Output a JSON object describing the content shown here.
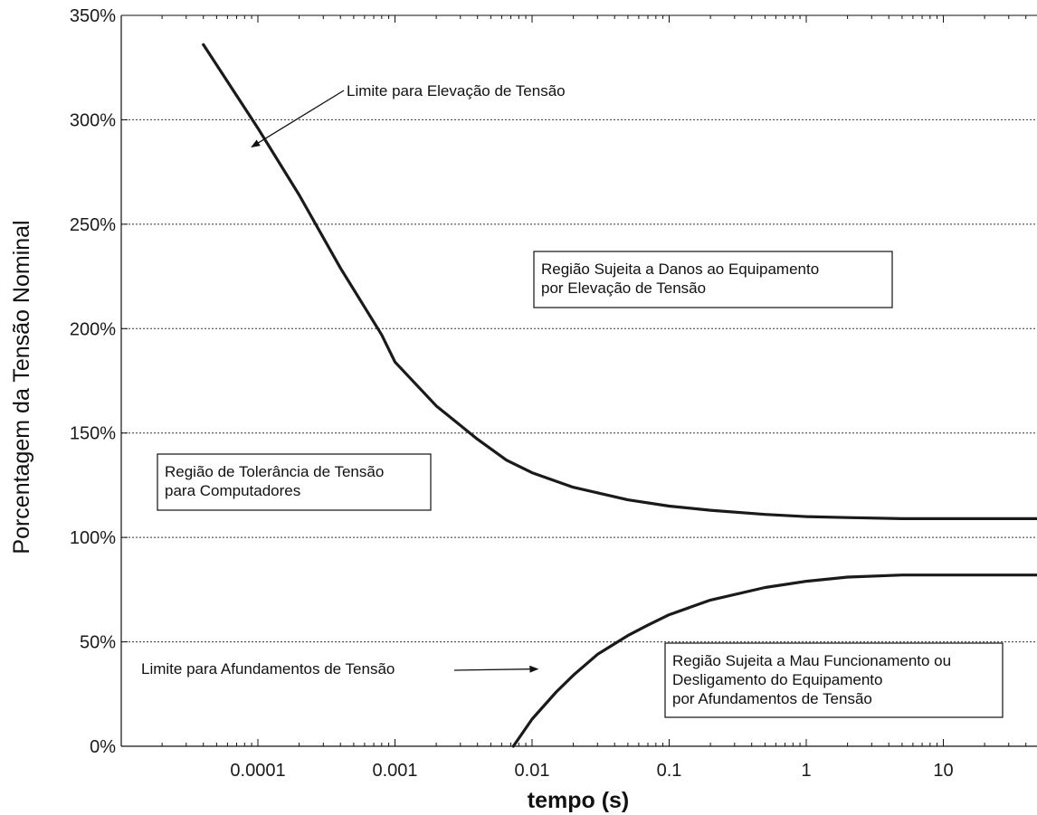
{
  "chart_data": {
    "type": "line",
    "xlabel": "tempo (s)",
    "ylabel": "Porcentagem da Tensão Nominal",
    "x_scale": "log",
    "xlim": [
      1e-05,
      50
    ],
    "ylim": [
      0,
      350
    ],
    "x_ticks": [
      0.0001,
      0.001,
      0.01,
      0.1,
      1,
      10
    ],
    "x_tick_labels": [
      "0.0001",
      "0.001",
      "0.01",
      "0.1",
      "1",
      "10"
    ],
    "y_ticks": [
      0,
      50,
      100,
      150,
      200,
      250,
      300,
      350
    ],
    "y_tick_labels": [
      "0%",
      "50%",
      "100%",
      "150%",
      "200%",
      "250%",
      "300%",
      "350%"
    ],
    "grid": "horizontal dashed",
    "series": [
      {
        "x": [
          4e-05,
          0.0001,
          0.0002,
          0.0004,
          0.0008,
          0.001,
          0.002,
          0.004,
          0.0065,
          0.01,
          0.02,
          0.05,
          0.1,
          0.2,
          0.5,
          1,
          2,
          5,
          10,
          50
        ],
        "y": [
          336,
          296,
          264,
          229,
          197,
          184,
          163,
          147,
          137,
          131,
          124,
          118,
          115,
          113,
          111,
          110,
          109.5,
          109,
          109,
          109
        ]
      },
      {
        "x": [
          0.0073,
          0.01,
          0.015,
          0.02,
          0.03,
          0.05,
          0.07,
          0.1,
          0.2,
          0.5,
          1,
          2,
          5,
          10,
          50
        ],
        "y": [
          0,
          13,
          26,
          34,
          44,
          53,
          58,
          63,
          70,
          76,
          79,
          81,
          82,
          82,
          82
        ]
      }
    ],
    "annotations": [
      {
        "id": "upper-limit",
        "text": "Limite para Elevação de Tensão",
        "arrow_to": [
          9e-05,
          287
        ]
      },
      {
        "id": "lower-limit",
        "text": "Limite para Afundamentos de Tensão",
        "arrow_to": [
          0.011,
          37
        ]
      }
    ],
    "region_labels": [
      {
        "id": "overvoltage-region",
        "lines": [
          "Região Sujeita a Danos ao Equipamento",
          "por Elevação de Tensão"
        ]
      },
      {
        "id": "tolerance-region",
        "lines": [
          "Região de Tolerância de Tensão",
          "para Computadores"
        ]
      },
      {
        "id": "undervoltage-region",
        "lines": [
          "Região Sujeita a Mau Funcionamento ou",
          "Desligamento do Equipamento",
          "por Afundamentos de Tensão"
        ]
      }
    ]
  }
}
